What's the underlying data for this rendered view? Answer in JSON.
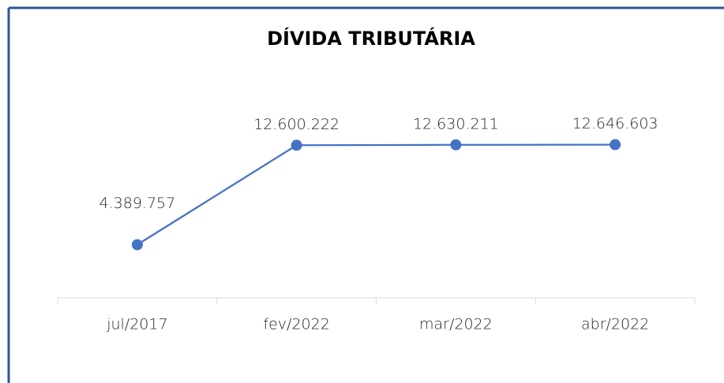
{
  "chart_data": {
    "type": "line",
    "title": "DÍVIDA TRIBUTÁRIA",
    "categories": [
      "jul/2017",
      "fev/2022",
      "mar/2022",
      "abr/2022"
    ],
    "series": [
      {
        "color": "#4472c4",
        "values": [
          4389757,
          12600222,
          12630211,
          12646603
        ],
        "value_labels": [
          "4.389.757",
          "12.600.222",
          "12.630.211",
          "12.646.603"
        ]
      }
    ],
    "ylim": [
      0,
      16000000
    ]
  }
}
